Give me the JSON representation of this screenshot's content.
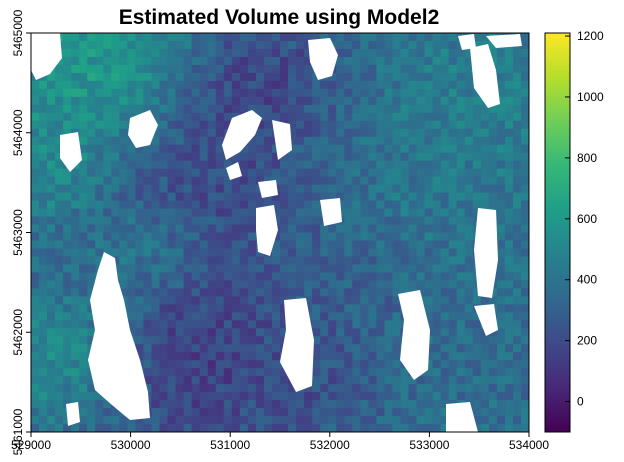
{
  "chart_data": {
    "type": "heatmap",
    "title": "Estimated Volume using Model2",
    "xlabel": "",
    "ylabel": "",
    "x_ticks": [
      529000,
      530000,
      531000,
      532000,
      533000,
      534000
    ],
    "x_tick_labels": [
      "529000",
      "530000",
      "531000",
      "532000",
      "533000",
      "534000"
    ],
    "xlim": [
      529000,
      534000
    ],
    "y_ticks": [
      5461000,
      5462000,
      5463000,
      5464000,
      5465000
    ],
    "y_tick_labels": [
      "5461000",
      "5462000",
      "5463000",
      "5464000",
      "5465000"
    ],
    "ylim": [
      5461000,
      5465000
    ],
    "colorbar": {
      "ticks": [
        0,
        200,
        400,
        600,
        800,
        1000,
        1200
      ],
      "tick_labels": [
        "0",
        "200",
        "400",
        "600",
        "800",
        "1000",
        "1200"
      ],
      "range": [
        -100,
        1210
      ],
      "colormap": "viridis",
      "colors": [
        "#440154",
        "#482878",
        "#3e4a89",
        "#31688e",
        "#26828e",
        "#1f9e89",
        "#35b779",
        "#6ece58",
        "#b5de2b",
        "#fde725"
      ]
    },
    "no_data_color": "#ffffff",
    "grid": false,
    "legend": "colorbar-right"
  }
}
